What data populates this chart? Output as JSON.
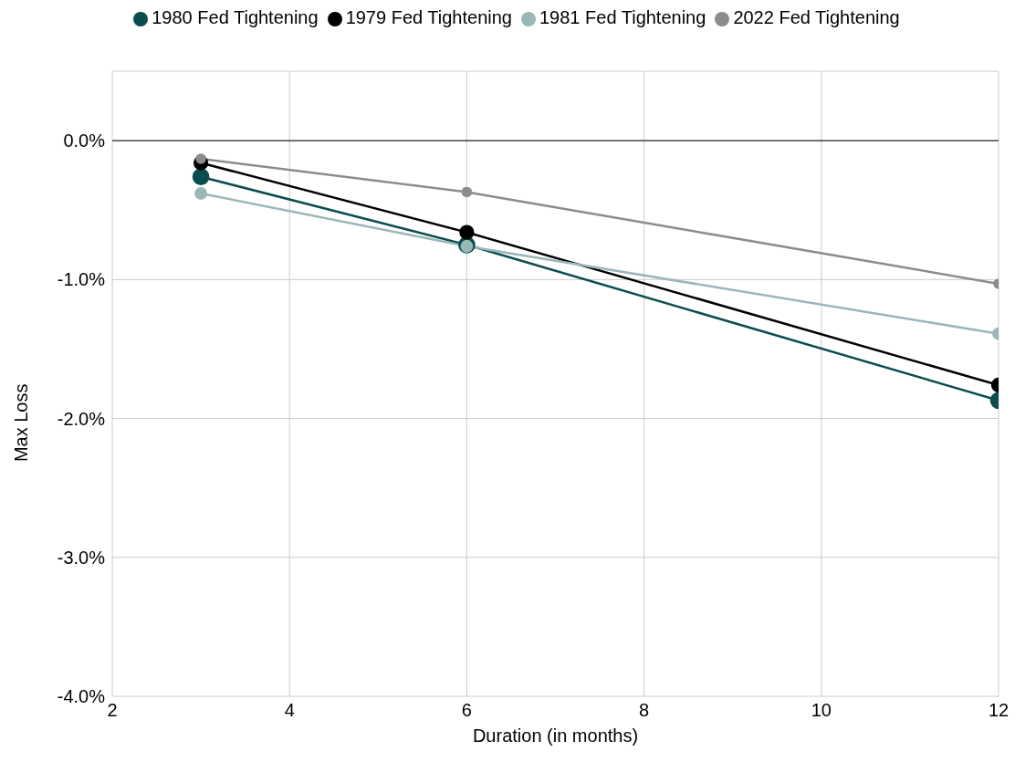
{
  "chart_data": {
    "type": "line",
    "xlabel": "Duration (in months)",
    "ylabel": "Max Loss",
    "x": [
      3,
      6,
      12
    ],
    "series": [
      {
        "name": "1980 Fed Tightening",
        "color": "#0b4d4f",
        "values": [
          -0.26,
          -0.75,
          -1.87
        ]
      },
      {
        "name": "1979 Fed Tightening",
        "color": "#000000",
        "values": [
          -0.16,
          -0.66,
          -1.76
        ]
      },
      {
        "name": "1981 Fed Tightening",
        "color": "#9ab7b7",
        "values": [
          -0.38,
          -0.76,
          -1.39
        ]
      },
      {
        "name": "2022 Fed Tightening",
        "color": "#8c8c8c",
        "values": [
          -0.13,
          -0.37,
          -1.03
        ]
      }
    ],
    "xlim": [
      2,
      12
    ],
    "xticks": [
      2,
      4,
      6,
      8,
      10,
      12
    ],
    "ylim": [
      -4,
      0.5
    ],
    "yticks": [
      {
        "value": -4,
        "label": "-4.0%"
      },
      {
        "value": -3,
        "label": "-3.0%"
      },
      {
        "value": -2,
        "label": "-2.0%"
      },
      {
        "value": -1,
        "label": "-1.0%"
      },
      {
        "value": 0,
        "label": "0.0%"
      }
    ],
    "ref_lines": [
      {
        "axis": "y",
        "value": 0,
        "color": "#000000"
      }
    ],
    "grid": true,
    "legend": "top",
    "marker": "circle",
    "line_style": "solid"
  }
}
